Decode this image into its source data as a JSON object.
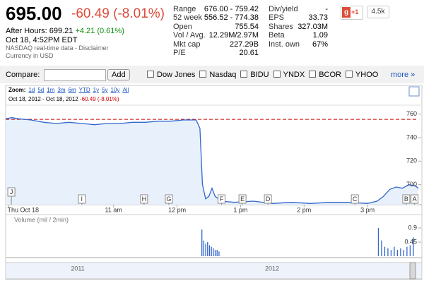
{
  "header": {
    "price": "695.00",
    "change": "-60.49 (-8.01%)",
    "after_hours_label": "After Hours: 699.21",
    "after_hours_change": "+4.21 (0.61%)",
    "timestamp": "Oct 18, 4:52PM EDT",
    "source": "NASDAQ real-time data -",
    "disclaimer": "Disclaimer",
    "currency": "Currency in USD"
  },
  "stats": [
    [
      {
        "label": "Range",
        "value": "676.00 - 759.42"
      },
      {
        "label": "52 week",
        "value": "556.52 - 774.38"
      },
      {
        "label": "Open",
        "value": "755.54"
      },
      {
        "label": "Vol / Avg.",
        "value": "12.29M/2.97M"
      },
      {
        "label": "Mkt cap",
        "value": "227.29B"
      },
      {
        "label": "P/E",
        "value": "20.61"
      }
    ],
    [
      {
        "label": "Div/yield",
        "value": "-"
      },
      {
        "label": "EPS",
        "value": "33.73"
      },
      {
        "label": "Shares",
        "value": "327.03M"
      },
      {
        "label": "Beta",
        "value": "1.09"
      },
      {
        "label": "Inst. own",
        "value": "67%"
      }
    ]
  ],
  "social": {
    "plus_one": "+1",
    "count": "4.5k"
  },
  "compare": {
    "label": "Compare:",
    "button": "Add",
    "options": [
      "Dow Jones",
      "Nasdaq",
      "BIDU",
      "YNDX",
      "BCOR",
      "YHOO"
    ],
    "more": "more »"
  },
  "chart": {
    "zoom_label": "Zoom:",
    "zoom_options": [
      "1d",
      "5d",
      "1m",
      "3m",
      "6m",
      "YTD",
      "1y",
      "5y",
      "10y",
      "All"
    ],
    "range": "Oct 18, 2012 - Oct 18, 2012",
    "range_change": "-60.49 (-8.01%)",
    "xlim": [
      9.3,
      15.8
    ],
    "xticks": [
      {
        "value": 9.35,
        "label": "Thu Oct 18"
      },
      {
        "value": 11,
        "label": "11 am"
      },
      {
        "value": 12,
        "label": "12 pm"
      },
      {
        "value": 13,
        "label": "1 pm"
      },
      {
        "value": 14,
        "label": "2 pm"
      },
      {
        "value": 15,
        "label": "3 pm"
      }
    ],
    "price": {
      "color": "#3366cc",
      "fill": "#e8f1fb",
      "ylim": [
        683,
        767
      ],
      "yticks": [
        700,
        720,
        740,
        760
      ],
      "reference": 755.49,
      "reference_color": "#cc0000",
      "x": [
        9.3,
        9.4,
        9.5,
        9.7,
        9.9,
        10.1,
        10.3,
        10.5,
        10.7,
        10.9,
        11.1,
        11.3,
        11.5,
        11.7,
        11.9,
        12.1,
        12.3,
        12.36,
        12.4,
        12.45,
        12.5,
        12.55,
        12.6,
        12.7,
        12.9,
        13.2,
        13.5,
        13.8,
        14.1,
        14.4,
        14.7,
        15.0,
        15.15,
        15.25,
        15.35,
        15.45,
        15.55,
        15.65,
        15.75,
        15.8
      ],
      "values": [
        756,
        757,
        756,
        755,
        753,
        752,
        753,
        752,
        751,
        752,
        752,
        753,
        753,
        754,
        754,
        755,
        755,
        748,
        700,
        688,
        690,
        697,
        690,
        686,
        685,
        686,
        684,
        685,
        684,
        685,
        685,
        684,
        686,
        690,
        696,
        698,
        697,
        700,
        699,
        697
      ]
    },
    "volume": {
      "title": "Volume (mil / 2min)",
      "color": "#3366cc",
      "ylim": [
        0,
        1
      ],
      "yticks": [
        0.45,
        0.9
      ],
      "x": [
        12.39,
        12.42,
        12.45,
        12.48,
        12.51,
        12.54,
        12.57,
        12.6,
        12.63,
        12.66,
        15.17,
        15.22,
        15.27,
        15.32,
        15.37,
        15.42,
        15.47,
        15.52,
        15.57,
        15.62,
        15.67,
        15.72
      ],
      "values": [
        0.85,
        0.5,
        0.4,
        0.45,
        0.35,
        0.3,
        0.25,
        0.2,
        0.2,
        0.15,
        0.9,
        0.5,
        0.3,
        0.25,
        0.2,
        0.3,
        0.2,
        0.25,
        0.2,
        0.3,
        0.35,
        0.6
      ]
    },
    "events": [
      {
        "label": "J",
        "x": 9.39
      },
      {
        "label": "I",
        "x": 10.5
      },
      {
        "label": "H",
        "x": 11.48
      },
      {
        "label": "G",
        "x": 11.87
      },
      {
        "label": "F",
        "x": 12.7
      },
      {
        "label": "E",
        "x": 13.03
      },
      {
        "label": "D",
        "x": 13.43
      },
      {
        "label": "C",
        "x": 14.8
      },
      {
        "label": "B",
        "x": 15.61
      },
      {
        "label": "A",
        "x": 15.74
      }
    ],
    "navigator": [
      "2011",
      "2012"
    ]
  }
}
